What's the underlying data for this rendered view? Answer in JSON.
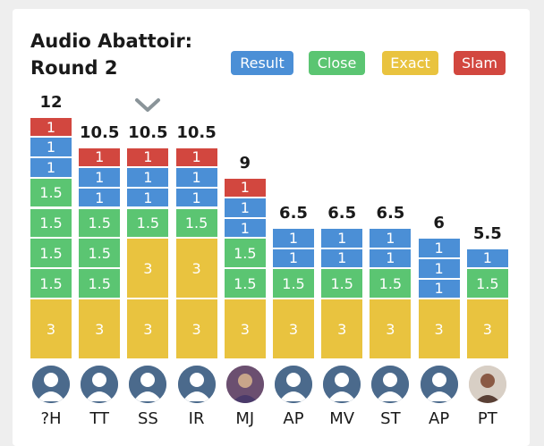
{
  "title": {
    "line1": "Audio Abattoir:",
    "line2": "Round 2"
  },
  "legend": [
    {
      "label": "Result",
      "color": "#4b8fd6"
    },
    {
      "label": "Close",
      "color": "#5bc572"
    },
    {
      "label": "Exact",
      "color": "#e9c33f"
    },
    {
      "label": "Slam",
      "color": "#d2473f"
    }
  ],
  "colors": {
    "result": "#4b8fd6",
    "close": "#5bc572",
    "exact": "#e9c33f",
    "slam": "#d2473f"
  },
  "chart_data": {
    "type": "bar",
    "title": "Audio Abattoir: Round 2",
    "categories": [
      "?H",
      "TT",
      "SS",
      "IR",
      "MJ",
      "AP",
      "MV",
      "ST",
      "AP",
      "PT"
    ],
    "totals": [
      "12",
      "10.5",
      "10.5",
      "10.5",
      "9",
      "6.5",
      "6.5",
      "6.5",
      "6",
      "5.5"
    ],
    "stacks": [
      [
        {
          "type": "exact",
          "value": "3"
        },
        {
          "type": "close",
          "value": "1.5"
        },
        {
          "type": "close",
          "value": "1.5"
        },
        {
          "type": "close",
          "value": "1.5"
        },
        {
          "type": "close",
          "value": "1.5"
        },
        {
          "type": "result",
          "value": "1"
        },
        {
          "type": "result",
          "value": "1"
        },
        {
          "type": "slam",
          "value": "1"
        }
      ],
      [
        {
          "type": "exact",
          "value": "3"
        },
        {
          "type": "close",
          "value": "1.5"
        },
        {
          "type": "close",
          "value": "1.5"
        },
        {
          "type": "close",
          "value": "1.5"
        },
        {
          "type": "result",
          "value": "1"
        },
        {
          "type": "result",
          "value": "1"
        },
        {
          "type": "slam",
          "value": "1"
        }
      ],
      [
        {
          "type": "exact",
          "value": "3"
        },
        {
          "type": "exact",
          "value": "3"
        },
        {
          "type": "close",
          "value": "1.5"
        },
        {
          "type": "result",
          "value": "1"
        },
        {
          "type": "result",
          "value": "1"
        },
        {
          "type": "slam",
          "value": "1"
        }
      ],
      [
        {
          "type": "exact",
          "value": "3"
        },
        {
          "type": "exact",
          "value": "3"
        },
        {
          "type": "close",
          "value": "1.5"
        },
        {
          "type": "result",
          "value": "1"
        },
        {
          "type": "result",
          "value": "1"
        },
        {
          "type": "slam",
          "value": "1"
        }
      ],
      [
        {
          "type": "exact",
          "value": "3"
        },
        {
          "type": "close",
          "value": "1.5"
        },
        {
          "type": "close",
          "value": "1.5"
        },
        {
          "type": "result",
          "value": "1"
        },
        {
          "type": "result",
          "value": "1"
        },
        {
          "type": "slam",
          "value": "1"
        }
      ],
      [
        {
          "type": "exact",
          "value": "3"
        },
        {
          "type": "close",
          "value": "1.5"
        },
        {
          "type": "result",
          "value": "1"
        },
        {
          "type": "result",
          "value": "1"
        }
      ],
      [
        {
          "type": "exact",
          "value": "3"
        },
        {
          "type": "close",
          "value": "1.5"
        },
        {
          "type": "result",
          "value": "1"
        },
        {
          "type": "result",
          "value": "1"
        }
      ],
      [
        {
          "type": "exact",
          "value": "3"
        },
        {
          "type": "close",
          "value": "1.5"
        },
        {
          "type": "result",
          "value": "1"
        },
        {
          "type": "result",
          "value": "1"
        }
      ],
      [
        {
          "type": "exact",
          "value": "3"
        },
        {
          "type": "result",
          "value": "1"
        },
        {
          "type": "result",
          "value": "1"
        },
        {
          "type": "result",
          "value": "1"
        }
      ],
      [
        {
          "type": "exact",
          "value": "3"
        },
        {
          "type": "close",
          "value": "1.5"
        },
        {
          "type": "result",
          "value": "1"
        }
      ]
    ],
    "avatars": [
      "default-avatar-icon",
      "default-avatar-icon",
      "default-avatar-icon",
      "default-avatar-icon",
      "photo-avatar",
      "default-avatar-icon",
      "default-avatar-icon",
      "default-avatar-icon",
      "default-avatar-icon",
      "photo-avatar"
    ],
    "highlighted_index": 2,
    "highlight_icon": "chevron-down-icon",
    "ylim": [
      0,
      12
    ]
  }
}
